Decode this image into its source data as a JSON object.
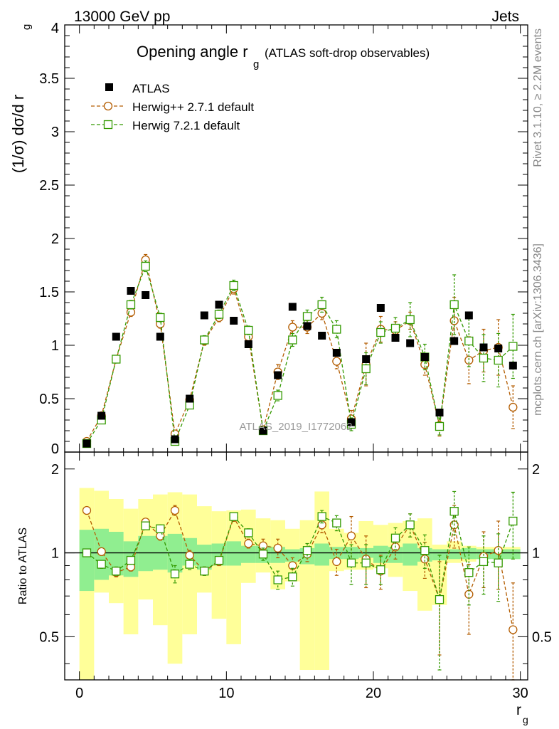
{
  "header": {
    "left": "13000 GeV pp",
    "right": "Jets"
  },
  "side_labels": {
    "rivet": "Rivet 3.1.10, ≥ 2.2M events",
    "mcplots": "mcplots.cern.ch [arXiv:1306.3436]"
  },
  "chart_data": [
    {
      "type": "scatter",
      "panel": "main",
      "title_main": "Opening angle r",
      "title_sub": "g",
      "title_extra": "(ATLAS soft-drop observables)",
      "ylabel": "(1/σ) dσ/d r",
      "ylabel_sub": "g",
      "watermark": "ATLAS_2019_I1772062",
      "xlim": [
        -1,
        30.5
      ],
      "ylim": [
        0,
        4
      ],
      "yticks": [
        0,
        0.5,
        1,
        1.5,
        2,
        2.5,
        3,
        3.5,
        4
      ],
      "ytick_labels": [
        "0",
        "0.5",
        "1",
        "1.5",
        "2",
        "2.5",
        "3",
        "3.5",
        "4"
      ],
      "x": [
        0.5,
        1.5,
        2.5,
        3.5,
        4.5,
        5.5,
        6.5,
        7.5,
        8.5,
        9.5,
        10.5,
        11.5,
        12.5,
        13.5,
        14.5,
        15.5,
        16.5,
        17.5,
        18.5,
        19.5,
        20.5,
        21.5,
        22.5,
        23.5,
        24.5,
        25.5,
        26.5,
        27.5,
        28.5,
        29.5
      ],
      "legend_position": "top-left",
      "series": [
        {
          "name": "ATLAS",
          "color": "#000000",
          "marker": "filled-square",
          "values": [
            0.08,
            0.34,
            1.08,
            1.51,
            1.47,
            1.08,
            0.12,
            0.5,
            1.28,
            1.38,
            1.23,
            1.01,
            0.2,
            0.72,
            1.36,
            1.18,
            1.09,
            0.93,
            0.28,
            0.87,
            1.35,
            1.07,
            1.02,
            0.89,
            0.37,
            1.04,
            1.28,
            0.98,
            0.97,
            0.81
          ]
        },
        {
          "name": "Herwig++ 2.7.1 default",
          "color": "#b35c00",
          "marker": "open-circle",
          "values": [
            0.1,
            0.34,
            0.87,
            1.31,
            1.8,
            1.2,
            0.17,
            0.49,
            1.04,
            1.26,
            1.53,
            1.08,
            0.21,
            0.75,
            1.17,
            1.17,
            1.3,
            0.85,
            0.31,
            0.82,
            1.15,
            1.14,
            1.23,
            0.82,
            0.25,
            1.23,
            0.86,
            0.95,
            0.98,
            0.42
          ],
          "errors": [
            0.02,
            0.02,
            0.03,
            0.04,
            0.05,
            0.04,
            0.02,
            0.03,
            0.04,
            0.04,
            0.05,
            0.04,
            0.03,
            0.07,
            0.06,
            0.06,
            0.06,
            0.07,
            0.08,
            0.2,
            0.12,
            0.08,
            0.08,
            0.1,
            0.1,
            0.22,
            0.22,
            0.2,
            0.26,
            0.2
          ]
        },
        {
          "name": "Herwig 7.2.1 default",
          "color": "#339900",
          "marker": "open-square",
          "values": [
            0.08,
            0.3,
            0.87,
            1.38,
            1.74,
            1.26,
            0.1,
            0.44,
            1.05,
            1.29,
            1.56,
            1.14,
            0.2,
            0.53,
            1.05,
            1.27,
            1.38,
            1.15,
            0.26,
            0.78,
            1.12,
            1.16,
            1.24,
            0.89,
            0.24,
            1.38,
            1.04,
            0.88,
            0.86,
            0.99
          ],
          "errors": [
            0.02,
            0.02,
            0.03,
            0.04,
            0.05,
            0.04,
            0.02,
            0.03,
            0.04,
            0.04,
            0.05,
            0.04,
            0.02,
            0.05,
            0.06,
            0.06,
            0.07,
            0.08,
            0.06,
            0.15,
            0.1,
            0.1,
            0.16,
            0.12,
            0.08,
            0.28,
            0.24,
            0.22,
            0.25,
            0.3
          ]
        }
      ]
    },
    {
      "type": "scatter",
      "panel": "ratio",
      "ylabel": "Ratio to ATLAS",
      "xlabel": "r",
      "xlabel_sub": "g",
      "xlim": [
        -1,
        30.5
      ],
      "ylim": [
        0.35,
        2.3
      ],
      "xticks": [
        0,
        10,
        20,
        30
      ],
      "xtick_labels": [
        "0",
        "10",
        "20",
        "30"
      ],
      "yticks": [
        0.5,
        1,
        2
      ],
      "ytick_labels": [
        "0.5",
        "1",
        "2"
      ],
      "bands": {
        "x_edges": [
          0,
          1,
          2,
          3,
          4,
          5,
          6,
          7,
          8,
          9,
          10,
          11,
          12,
          13,
          14,
          15,
          16,
          17,
          18,
          19,
          20,
          21,
          22,
          23,
          24,
          25,
          26,
          27,
          28,
          29,
          30
        ],
        "green": {
          "color": "#90ee90",
          "low": [
            0.73,
            0.8,
            0.83,
            0.82,
            0.86,
            0.87,
            0.85,
            0.9,
            0.87,
            0.9,
            0.9,
            0.92,
            0.92,
            0.92,
            0.93,
            0.91,
            0.9,
            0.95,
            0.95,
            0.96,
            0.92,
            0.92,
            0.9,
            0.93,
            0.94,
            0.95,
            0.95,
            0.95,
            0.95,
            0.95
          ],
          "high": [
            1.21,
            1.22,
            1.19,
            1.1,
            1.15,
            1.15,
            1.17,
            1.13,
            1.07,
            1.08,
            1.1,
            1.06,
            1.06,
            1.05,
            1.03,
            1.04,
            1.08,
            1.05,
            1.05,
            1.04,
            1.06,
            1.05,
            1.08,
            1.04,
            1.03,
            1.03,
            1.04,
            1.03,
            1.03,
            1.03
          ]
        },
        "yellow": {
          "color": "#ffff99",
          "low": [
            0.35,
            0.72,
            0.66,
            0.51,
            0.68,
            0.55,
            0.4,
            0.51,
            0.72,
            0.58,
            0.47,
            0.78,
            0.85,
            0.74,
            0.79,
            0.38,
            0.38,
            0.86,
            0.87,
            0.87,
            0.88,
            0.82,
            0.73,
            0.62,
            0.65,
            0.92,
            0.93,
            0.95,
            0.95,
            0.95
          ],
          "high": [
            1.71,
            1.67,
            1.56,
            1.44,
            1.56,
            1.62,
            1.65,
            1.62,
            1.47,
            1.41,
            1.42,
            1.43,
            1.33,
            1.31,
            1.22,
            1.31,
            1.66,
            1.22,
            1.18,
            1.3,
            1.26,
            1.28,
            1.3,
            1.33,
            1.07,
            1.1,
            1.06,
            1.05,
            1.05,
            1.05
          ]
        }
      },
      "x": [
        0.5,
        1.5,
        2.5,
        3.5,
        4.5,
        5.5,
        6.5,
        7.5,
        8.5,
        9.5,
        10.5,
        11.5,
        12.5,
        13.5,
        14.5,
        15.5,
        16.5,
        17.5,
        18.5,
        19.5,
        20.5,
        21.5,
        22.5,
        23.5,
        24.5,
        25.5,
        26.5,
        27.5,
        28.5,
        29.5
      ],
      "series": [
        {
          "name": "Herwig++ 2.7.1 default",
          "color": "#b35c00",
          "marker": "open-circle",
          "values": [
            1.42,
            1.01,
            0.85,
            0.89,
            1.29,
            1.15,
            1.42,
            0.98,
            0.86,
            0.93,
            1.34,
            1.08,
            1.06,
            1.04,
            0.9,
            0.99,
            1.26,
            0.93,
            1.15,
            0.95,
            0.86,
            1.05,
            1.26,
            0.95,
            0.68,
            1.26,
            0.71,
            0.97,
            1.02,
            0.53
          ],
          "errors": [
            0.03,
            0.03,
            0.03,
            0.03,
            0.03,
            0.04,
            0.06,
            0.04,
            0.03,
            0.03,
            0.04,
            0.04,
            0.06,
            0.08,
            0.06,
            0.06,
            0.08,
            0.1,
            0.2,
            0.2,
            0.12,
            0.1,
            0.12,
            0.14,
            0.25,
            0.22,
            0.2,
            0.22,
            0.28,
            0.25
          ]
        },
        {
          "name": "Herwig 7.2.1 default",
          "color": "#339900",
          "marker": "open-square",
          "values": [
            1.0,
            0.91,
            0.86,
            0.94,
            1.25,
            1.22,
            0.84,
            0.91,
            0.86,
            0.94,
            1.35,
            1.18,
            0.99,
            0.8,
            0.82,
            1.02,
            1.35,
            1.28,
            0.92,
            0.92,
            0.87,
            1.13,
            1.26,
            1.02,
            0.68,
            1.41,
            0.85,
            0.93,
            0.92,
            1.3
          ],
          "errors": [
            0.03,
            0.03,
            0.03,
            0.03,
            0.03,
            0.04,
            0.06,
            0.04,
            0.03,
            0.03,
            0.04,
            0.04,
            0.05,
            0.06,
            0.06,
            0.06,
            0.07,
            0.08,
            0.15,
            0.15,
            0.1,
            0.1,
            0.12,
            0.14,
            0.3,
            0.25,
            0.2,
            0.22,
            0.25,
            0.35
          ]
        }
      ]
    }
  ]
}
